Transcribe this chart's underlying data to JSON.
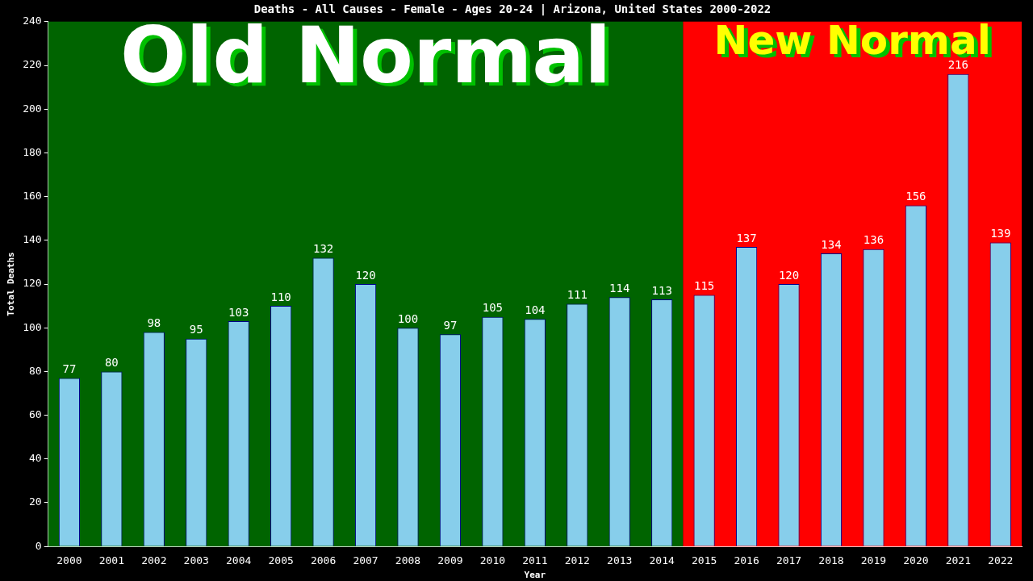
{
  "chart_data": {
    "type": "bar",
    "title": "Deaths - All Causes - Female - Ages 20-24 | Arizona, United States 2000-2022",
    "xlabel": "Year",
    "ylabel": "Total Deaths",
    "categories": [
      "2000",
      "2001",
      "2002",
      "2003",
      "2004",
      "2005",
      "2006",
      "2007",
      "2008",
      "2009",
      "2010",
      "2011",
      "2012",
      "2013",
      "2014",
      "2015",
      "2016",
      "2017",
      "2018",
      "2019",
      "2020",
      "2021",
      "2022"
    ],
    "values": [
      77,
      80,
      98,
      95,
      103,
      110,
      132,
      120,
      100,
      97,
      105,
      104,
      111,
      114,
      113,
      115,
      137,
      120,
      134,
      136,
      156,
      216,
      139
    ],
    "color": "#87ceeb",
    "ylim": [
      0,
      240
    ],
    "yticks": [
      0,
      20,
      40,
      60,
      80,
      100,
      120,
      140,
      160,
      180,
      200,
      220,
      240
    ],
    "grid": false,
    "legend": false,
    "data_labels": true,
    "bands": [
      {
        "axis": "x",
        "from": "2000",
        "to": "2014",
        "label": "Old Normal",
        "color": "#006400"
      },
      {
        "axis": "x",
        "from": "2015",
        "to": "2022",
        "label": "New Normal",
        "color": "#ff0000"
      }
    ]
  }
}
